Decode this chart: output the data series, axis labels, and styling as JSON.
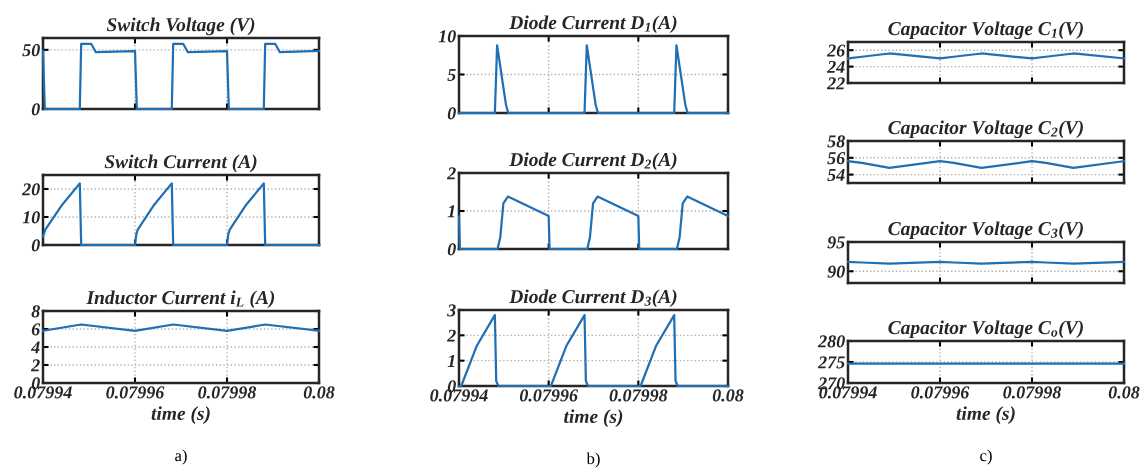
{
  "chart_data": [
    {
      "type": "line",
      "title": "Switch Voltage (V)",
      "x": [
        0.07994,
        0.0799404,
        0.079948,
        0.0799483,
        0.0799505,
        0.0799515,
        0.07996,
        0.0799604,
        0.079968,
        0.0799683,
        0.0799705,
        0.0799715,
        0.07998,
        0.0799804,
        0.079988,
        0.0799883,
        0.0799905,
        0.0799915,
        0.08
      ],
      "series": [
        {
          "color": "#1f6fb5",
          "values": [
            49,
            0,
            0,
            55,
            55,
            48,
            49,
            0,
            0,
            55,
            55,
            48,
            49,
            0,
            0,
            55,
            55,
            48,
            49
          ]
        }
      ],
      "xlim": [
        0.07994,
        0.08
      ],
      "xticks": [
        0.07994,
        0.07996,
        0.07998,
        0.08
      ],
      "ylim": [
        0,
        60
      ],
      "yticks": [
        0,
        50
      ],
      "grid": true,
      "tick_labels": "y"
    },
    {
      "type": "line",
      "title": "Switch Current (A)",
      "x": [
        0.07994,
        0.0799405,
        0.079944,
        0.079948,
        0.0799483,
        0.07996,
        0.0799603,
        0.0799606,
        0.079964,
        0.079968,
        0.0799683,
        0.07998,
        0.0799803,
        0.0799806,
        0.079984,
        0.079988,
        0.0799883,
        0.08
      ],
      "series": [
        {
          "color": "#1f6fb5",
          "values": [
            3,
            5.5,
            14,
            22,
            0,
            0,
            4,
            5.5,
            14,
            22,
            0,
            0,
            4,
            5.5,
            14,
            22,
            0,
            0
          ]
        }
      ],
      "xlim": [
        0.07994,
        0.08
      ],
      "xticks": [
        0.07994,
        0.07996,
        0.07998,
        0.08
      ],
      "ylim": [
        0,
        25
      ],
      "yticks": [
        0,
        10,
        20
      ],
      "grid": true,
      "tick_labels": "y"
    },
    {
      "type": "line",
      "title": "Inductor Current i$_{L}$ (A)",
      "xlabel": "time (s)",
      "annotations": [
        "a)"
      ],
      "x": [
        0.07994,
        0.0799483,
        0.07996,
        0.0799683,
        0.07998,
        0.0799883,
        0.08
      ],
      "series": [
        {
          "color": "#1f6fb5",
          "values": [
            5.8,
            6.5,
            5.8,
            6.5,
            5.8,
            6.5,
            5.8
          ]
        }
      ],
      "xlim": [
        0.07994,
        0.08
      ],
      "xticks": [
        0.07994,
        0.07996,
        0.07998,
        0.08
      ],
      "ylim": [
        0,
        8
      ],
      "yticks": [
        0,
        2,
        4,
        6,
        8
      ],
      "grid": true
    },
    {
      "type": "line",
      "title": "Diode Current D$_{1}$(A)",
      "x": [
        0.07994,
        0.079948,
        0.0799485,
        0.0799505,
        0.079951,
        0.079968,
        0.0799685,
        0.0799705,
        0.079971,
        0.079988,
        0.0799885,
        0.0799905,
        0.079991,
        0.08
      ],
      "series": [
        {
          "color": "#1f6fb5",
          "values": [
            0,
            0,
            8.8,
            1,
            0,
            0,
            8.8,
            1,
            0,
            0,
            8.8,
            1,
            0,
            0
          ]
        }
      ],
      "xlim": [
        0.07994,
        0.08
      ],
      "xticks": [
        0.07994,
        0.07996,
        0.07998,
        0.08
      ],
      "ylim": [
        0,
        10
      ],
      "yticks": [
        0,
        5,
        10
      ],
      "grid": true,
      "tick_labels": "y"
    },
    {
      "type": "line",
      "title": "Diode Current D$_{2}$(A)",
      "x": [
        0.07994,
        0.0799402,
        0.0799486,
        0.0799492,
        0.0799499,
        0.0799509,
        0.07996,
        0.0799602,
        0.0799686,
        0.0799692,
        0.0799699,
        0.0799709,
        0.07998,
        0.0799802,
        0.0799886,
        0.0799892,
        0.0799899,
        0.0799909,
        0.08
      ],
      "series": [
        {
          "color": "#1f6fb5",
          "values": [
            0.85,
            0,
            0,
            0.3,
            1.2,
            1.38,
            0.87,
            0,
            0,
            0.3,
            1.2,
            1.38,
            0.87,
            0,
            0,
            0.3,
            1.2,
            1.38,
            0.87
          ]
        }
      ],
      "xlim": [
        0.07994,
        0.08
      ],
      "xticks": [
        0.07994,
        0.07996,
        0.07998,
        0.08
      ],
      "ylim": [
        0,
        2
      ],
      "yticks": [
        0,
        1,
        2
      ],
      "grid": true,
      "tick_labels": "y"
    },
    {
      "type": "line",
      "title": "Diode Current D$_{3}$(A)",
      "xlabel": "time (s)",
      "annotations": [
        "b)"
      ],
      "x": [
        0.07994,
        0.0799405,
        0.079944,
        0.079948,
        0.0799483,
        0.0799488,
        0.0799605,
        0.079964,
        0.079968,
        0.0799683,
        0.0799688,
        0.0799805,
        0.079984,
        0.079988,
        0.0799883,
        0.0799888,
        0.08
      ],
      "series": [
        {
          "color": "#1f6fb5",
          "values": [
            0,
            0,
            1.6,
            2.8,
            0.2,
            0,
            0,
            1.6,
            2.8,
            0.2,
            0,
            0,
            1.6,
            2.8,
            0.2,
            0,
            0
          ]
        }
      ],
      "xlim": [
        0.07994,
        0.08
      ],
      "xticks": [
        0.07994,
        0.07996,
        0.07998,
        0.08
      ],
      "ylim": [
        0,
        3
      ],
      "yticks": [
        0,
        1,
        2,
        3
      ],
      "grid": true
    },
    {
      "type": "line",
      "title": "Capacitor Voltage C$_{1}$(V)",
      "x": [
        0.07994,
        0.079943,
        0.079949,
        0.07996,
        0.079963,
        0.079969,
        0.07998,
        0.079983,
        0.079989,
        0.08
      ],
      "series": [
        {
          "color": "#1f6fb5",
          "values": [
            25,
            25.2,
            25.6,
            25,
            25.2,
            25.6,
            25,
            25.2,
            25.6,
            25
          ]
        }
      ],
      "xlim": [
        0.07994,
        0.08
      ],
      "xticks": [
        0.07994,
        0.07996,
        0.07998,
        0.08
      ],
      "ylim": [
        22,
        27
      ],
      "yticks": [
        22,
        24,
        26
      ],
      "grid": true,
      "tick_labels": "y"
    },
    {
      "type": "line",
      "title": "Capacitor Voltage C$_{2}$(V)",
      "x": [
        0.07994,
        0.079943,
        0.079949,
        0.07996,
        0.079963,
        0.079969,
        0.07998,
        0.079983,
        0.079989,
        0.08
      ],
      "series": [
        {
          "color": "#1f6fb5",
          "values": [
            55.6,
            55.4,
            54.8,
            55.6,
            55.4,
            54.8,
            55.6,
            55.4,
            54.8,
            55.6
          ]
        }
      ],
      "xlim": [
        0.07994,
        0.08
      ],
      "xticks": [
        0.07994,
        0.07996,
        0.07998,
        0.08
      ],
      "ylim": [
        53,
        58
      ],
      "yticks": [
        54,
        56,
        58
      ],
      "grid": true,
      "tick_labels": "y"
    },
    {
      "type": "line",
      "title": "Capacitor Voltage C$_{3}$(V)",
      "x": [
        0.07994,
        0.079943,
        0.079949,
        0.07996,
        0.079963,
        0.079969,
        0.07998,
        0.079983,
        0.079989,
        0.08
      ],
      "series": [
        {
          "color": "#1f6fb5",
          "values": [
            91.6,
            91.5,
            91.3,
            91.6,
            91.5,
            91.3,
            91.6,
            91.5,
            91.3,
            91.6
          ]
        }
      ],
      "xlim": [
        0.07994,
        0.08
      ],
      "xticks": [
        0.07994,
        0.07996,
        0.07998,
        0.08
      ],
      "ylim": [
        88,
        95
      ],
      "yticks": [
        90,
        95
      ],
      "grid": true,
      "tick_labels": "y"
    },
    {
      "type": "line",
      "title": "Capacitor Voltage C$_{o}$(V)",
      "xlabel": "time (s)",
      "annotations": [
        "c)"
      ],
      "x": [
        0.07994,
        0.08
      ],
      "series": [
        {
          "color": "#1f6fb5",
          "values": [
            274.6,
            274.6
          ]
        }
      ],
      "xlim": [
        0.07994,
        0.08
      ],
      "xticks": [
        0.07994,
        0.07996,
        0.07998,
        0.08
      ],
      "ylim": [
        270,
        280
      ],
      "yticks": [
        270,
        275,
        280
      ],
      "grid": true
    }
  ]
}
